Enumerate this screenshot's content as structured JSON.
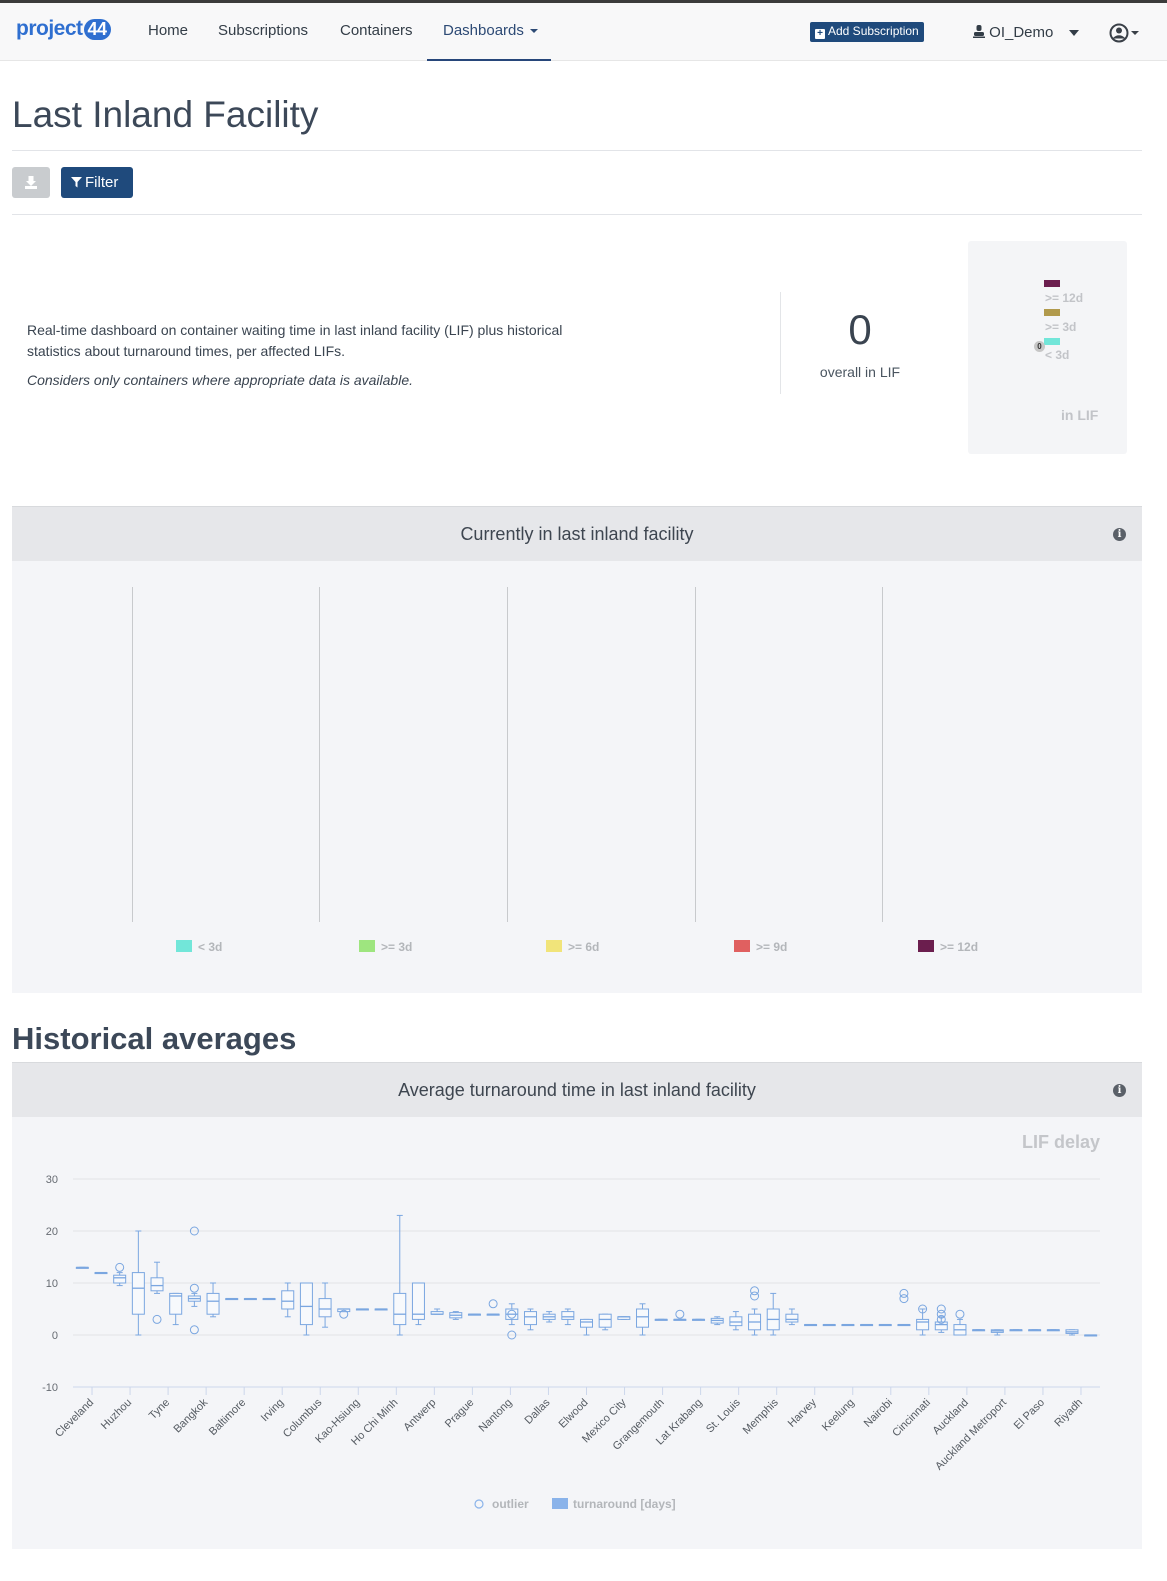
{
  "navbar": {
    "logo_text": "project",
    "logo_num": "44",
    "items": [
      {
        "label": "Home"
      },
      {
        "label": "Subscriptions"
      },
      {
        "label": "Containers"
      },
      {
        "label": "Dashboards"
      }
    ],
    "add_subscription_label": "Add Subscription",
    "user_label": "OI_Demo"
  },
  "page": {
    "title": "Last Inland Facility",
    "filter_label": "Filter"
  },
  "summary": {
    "description": "Real-time dashboard on container waiting time in last inland facility (LIF) plus historical statistics about turnaround times, per affected LIFs.",
    "note": "Considers only containers where appropriate data is available.",
    "overall_value": "0",
    "overall_label": "overall in LIF",
    "mini_chart": {
      "legend": [
        {
          "label": ">= 12d",
          "color": "#6b1e4e"
        },
        {
          "label": ">= 3d",
          "color": "#b19a4c"
        },
        {
          "label": "< 3d",
          "color": "#72e6d9"
        }
      ],
      "point_value": "0",
      "caption": "in LIF"
    }
  },
  "current_panel": {
    "title": "Currently in last inland facility",
    "legend": [
      {
        "label": "< 3d",
        "color": "#72e6d9"
      },
      {
        "label": ">= 3d",
        "color": "#9ee57f"
      },
      {
        "label": ">= 6d",
        "color": "#f1e47a"
      },
      {
        "label": ">= 9d",
        "color": "#e06060"
      },
      {
        "label": ">= 12d",
        "color": "#6b1e4e"
      }
    ]
  },
  "historical": {
    "section_title": "Historical averages",
    "panel_title": "Average turnaround time in last inland facility"
  },
  "chart_data": {
    "type": "boxplot",
    "title": "LIF delay",
    "ylim": [
      -10,
      30
    ],
    "yticks": [
      -10,
      0,
      10,
      20,
      30
    ],
    "series_colors": {
      "box": "#7aa6e0",
      "legend_turnaround": "#8ab3ea"
    },
    "tick_labels": [
      "Cleveland",
      "Huzhou",
      "Tyne",
      "Bangkok",
      "Baltimore",
      "Irving",
      "Columbus",
      "Kao-Hsiung",
      "Ho Chi Minh",
      "Antwerp",
      "Prague",
      "Nantong",
      "Dallas",
      "Elwood",
      "Mexico City",
      "Grangemouth",
      "Lat Krabang",
      "St. Louis",
      "Memphis",
      "Harvey",
      "Keelung",
      "Nairobi",
      "Cincinnati",
      "Auckland",
      "Auckland Metroport",
      "El Paso",
      "Riyadh"
    ],
    "boxes": [
      {
        "low": 13,
        "q1": 13,
        "median": 13,
        "q3": 13,
        "high": 13
      },
      {
        "low": 12,
        "q1": 12,
        "median": 12,
        "q3": 12,
        "high": 12
      },
      {
        "low": 9.5,
        "q1": 10,
        "median": 11,
        "q3": 11.5,
        "high": 12
      },
      {
        "low": 0,
        "q1": 4,
        "median": 9,
        "q3": 12,
        "high": 20
      },
      {
        "low": 8,
        "q1": 8.5,
        "median": 9.5,
        "q3": 11,
        "high": 14
      },
      {
        "low": 2,
        "q1": 4,
        "median": 7.5,
        "q3": 8,
        "high": 8
      },
      {
        "low": 5.5,
        "q1": 6.5,
        "median": 7,
        "q3": 7.5,
        "high": 8
      },
      {
        "low": 3.5,
        "q1": 4,
        "median": 6.5,
        "q3": 8,
        "high": 10
      },
      {
        "low": 7,
        "q1": 7,
        "median": 7,
        "q3": 7,
        "high": 7
      },
      {
        "low": 7,
        "q1": 7,
        "median": 7,
        "q3": 7,
        "high": 7
      },
      {
        "low": 7,
        "q1": 7,
        "median": 7,
        "q3": 7,
        "high": 7
      },
      {
        "low": 3.5,
        "q1": 5,
        "median": 6.5,
        "q3": 8.5,
        "high": 10
      },
      {
        "low": 0,
        "q1": 2,
        "median": 5.5,
        "q3": 10,
        "high": 10
      },
      {
        "low": 1.5,
        "q1": 3.5,
        "median": 5,
        "q3": 7,
        "high": 10
      },
      {
        "low": 4.5,
        "q1": 4.5,
        "median": 5,
        "q3": 5,
        "high": 5
      },
      {
        "low": 5,
        "q1": 5,
        "median": 5,
        "q3": 5,
        "high": 5
      },
      {
        "low": 5,
        "q1": 5,
        "median": 5,
        "q3": 5,
        "high": 5
      },
      {
        "low": 0,
        "q1": 2,
        "median": 4,
        "q3": 8,
        "high": 23
      },
      {
        "low": 2,
        "q1": 3,
        "median": 4,
        "q3": 10,
        "high": 10
      },
      {
        "low": 4,
        "q1": 4,
        "median": 4,
        "q3": 4.5,
        "high": 5
      },
      {
        "low": 3,
        "q1": 3.3,
        "median": 3.8,
        "q3": 4.3,
        "high": 4.5
      },
      {
        "low": 4,
        "q1": 4,
        "median": 4,
        "q3": 4,
        "high": 4
      },
      {
        "low": 4,
        "q1": 4,
        "median": 4,
        "q3": 4,
        "high": 4
      },
      {
        "low": 2,
        "q1": 3,
        "median": 4,
        "q3": 5,
        "high": 6
      },
      {
        "low": 1,
        "q1": 2,
        "median": 3.5,
        "q3": 4.5,
        "high": 5
      },
      {
        "low": 2.5,
        "q1": 3,
        "median": 3.5,
        "q3": 4,
        "high": 4.5
      },
      {
        "low": 2,
        "q1": 3,
        "median": 3.5,
        "q3": 4.5,
        "high": 5
      },
      {
        "low": 0,
        "q1": 1.5,
        "median": 2.5,
        "q3": 3,
        "high": 3
      },
      {
        "low": 1,
        "q1": 1.5,
        "median": 3,
        "q3": 4,
        "high": 4
      },
      {
        "low": 3,
        "q1": 3,
        "median": 3.5,
        "q3": 3.5,
        "high": 3.5
      },
      {
        "low": 0,
        "q1": 1.5,
        "median": 3.5,
        "q3": 5,
        "high": 6
      },
      {
        "low": 3,
        "q1": 3,
        "median": 3,
        "q3": 3,
        "high": 3
      },
      {
        "low": 3,
        "q1": 3,
        "median": 3,
        "q3": 3,
        "high": 3
      },
      {
        "low": 3,
        "q1": 3,
        "median": 3,
        "q3": 3,
        "high": 3
      },
      {
        "low": 2,
        "q1": 2.3,
        "median": 2.8,
        "q3": 3.2,
        "high": 3.5
      },
      {
        "low": 1,
        "q1": 1.8,
        "median": 2.5,
        "q3": 3.5,
        "high": 4.5
      },
      {
        "low": 0,
        "q1": 1,
        "median": 2.5,
        "q3": 4,
        "high": 5
      },
      {
        "low": 0,
        "q1": 1,
        "median": 3,
        "q3": 5,
        "high": 8
      },
      {
        "low": 2,
        "q1": 2.5,
        "median": 3,
        "q3": 4,
        "high": 5
      },
      {
        "low": 2,
        "q1": 2,
        "median": 2,
        "q3": 2,
        "high": 2
      },
      {
        "low": 2,
        "q1": 2,
        "median": 2,
        "q3": 2,
        "high": 2
      },
      {
        "low": 2,
        "q1": 2,
        "median": 2,
        "q3": 2,
        "high": 2
      },
      {
        "low": 2,
        "q1": 2,
        "median": 2,
        "q3": 2,
        "high": 2
      },
      {
        "low": 2,
        "q1": 2,
        "median": 2,
        "q3": 2,
        "high": 2
      },
      {
        "low": 2,
        "q1": 2,
        "median": 2,
        "q3": 2,
        "high": 2
      },
      {
        "low": 0,
        "q1": 1,
        "median": 2.5,
        "q3": 3,
        "high": 5
      },
      {
        "low": 0.5,
        "q1": 1,
        "median": 2,
        "q3": 2.5,
        "high": 3.5
      },
      {
        "low": 0,
        "q1": 0,
        "median": 1,
        "q3": 2,
        "high": 3
      },
      {
        "low": 1,
        "q1": 1,
        "median": 1,
        "q3": 1,
        "high": 1
      },
      {
        "low": 0,
        "q1": 0.5,
        "median": 0.8,
        "q3": 1,
        "high": 1
      },
      {
        "low": 1,
        "q1": 1,
        "median": 1,
        "q3": 1,
        "high": 1
      },
      {
        "low": 1,
        "q1": 1,
        "median": 1,
        "q3": 1,
        "high": 1
      },
      {
        "low": 1,
        "q1": 1,
        "median": 1,
        "q3": 1,
        "high": 1
      },
      {
        "low": 0,
        "q1": 0.3,
        "median": 0.6,
        "q3": 1,
        "high": 1
      },
      {
        "low": 0,
        "q1": 0,
        "median": 0,
        "q3": 0,
        "high": 0
      }
    ],
    "outliers": [
      {
        "box": 2,
        "y": 13
      },
      {
        "box": 4,
        "y": 3
      },
      {
        "box": 6,
        "y": 20
      },
      {
        "box": 6,
        "y": 9
      },
      {
        "box": 6,
        "y": 1
      },
      {
        "box": 14,
        "y": 4
      },
      {
        "box": 22,
        "y": 6
      },
      {
        "box": 23,
        "y": 4
      },
      {
        "box": 23,
        "y": 0
      },
      {
        "box": 32,
        "y": 4
      },
      {
        "box": 36,
        "y": 8.5
      },
      {
        "box": 36,
        "y": 7.5
      },
      {
        "box": 44,
        "y": 8
      },
      {
        "box": 44,
        "y": 7
      },
      {
        "box": 45,
        "y": 5
      },
      {
        "box": 46,
        "y": 5
      },
      {
        "box": 46,
        "y": 4
      },
      {
        "box": 46,
        "y": 3
      },
      {
        "box": 47,
        "y": 4
      }
    ],
    "legend": [
      {
        "label": "outlier",
        "kind": "circle"
      },
      {
        "label": "turnaround [days]",
        "kind": "box"
      }
    ]
  }
}
